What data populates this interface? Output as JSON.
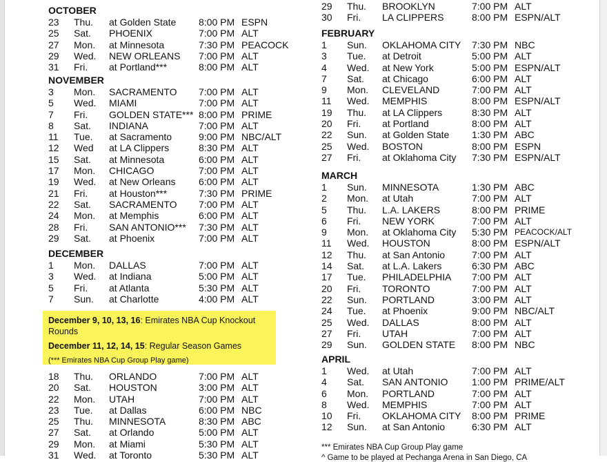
{
  "left_sections": [
    {
      "month": "OCTOBER",
      "games": [
        [
          "23",
          "Thu.",
          "at Golden State",
          "8:00 PM",
          "ESPN"
        ],
        [
          "25",
          "Sat.",
          "PHOENIX",
          "7:00 PM",
          "ALT"
        ],
        [
          "27",
          "Mon.",
          "at Minnesota",
          "7:30 PM",
          "PEACOCK"
        ],
        [
          "29",
          "Wed.",
          "NEW ORLEANS",
          "7:00 PM",
          "ALT"
        ],
        [
          "31",
          "Fri.",
          "at Portland***",
          "8:00 PM",
          "ALT"
        ]
      ]
    },
    {
      "month": "NOVEMBER",
      "games": [
        [
          "3",
          "Mon.",
          "SACRAMENTO",
          "7:00 PM",
          "ALT"
        ],
        [
          "5",
          "Wed.",
          "MIAMI",
          "7:00 PM",
          "ALT"
        ],
        [
          "7",
          "Fri.",
          "GOLDEN STATE***",
          "8:00 PM",
          "PRIME"
        ],
        [
          "8",
          "Sat.",
          "INDIANA",
          "7:00 PM",
          "ALT"
        ],
        [
          "11",
          "Tue.",
          "at Sacramento",
          "9:00 PM",
          "NBC/ALT"
        ],
        [
          "12",
          "Wed",
          "at LA Clippers",
          "8:30 PM",
          "ALT"
        ],
        [
          "15",
          "Sat.",
          "at Minnesota",
          "6:00 PM",
          "ALT"
        ],
        [
          "17",
          "Mon.",
          "CHICAGO",
          "7:00 PM",
          "ALT"
        ],
        [
          "19",
          "Wed.",
          "at New Orleans",
          "6:00 PM",
          "ALT"
        ],
        [
          "21",
          "Fri.",
          "at Houston***",
          "7:30 PM",
          "PRIME"
        ],
        [
          "22",
          "Sat.",
          "SACRAMENTO",
          "7:00 PM",
          "ALT"
        ],
        [
          "24",
          "Mon.",
          "at Memphis",
          "6:00 PM",
          "ALT"
        ],
        [
          "28",
          "Fri.",
          "SAN ANTONIO***",
          "7:30 PM",
          "ALT"
        ],
        [
          "29",
          "Sat.",
          "at Phoenix",
          "7:00 PM",
          "ALT"
        ]
      ]
    },
    {
      "month": "DECEMBER",
      "games": [
        [
          "1",
          "Mon.",
          "DALLAS",
          "7:00 PM",
          "ALT"
        ],
        [
          "3",
          "Wed.",
          "at Indiana",
          "5:00 PM",
          "ALT"
        ],
        [
          "5",
          "Fri.",
          "at Atlanta",
          "5:30 PM",
          "ALT"
        ],
        [
          "7",
          "Sun.",
          "at Charlotte",
          "4:00 PM",
          "ALT"
        ]
      ]
    },
    {
      "month": "",
      "games": [
        [
          "18",
          "Thu.",
          "ORLANDO",
          "7:00 PM",
          "ALT"
        ],
        [
          "20",
          "Sat.",
          "HOUSTON",
          "3:00 PM",
          "ALT"
        ],
        [
          "22",
          "Mon.",
          "UTAH",
          "7:00 PM",
          "ALT"
        ],
        [
          "23",
          "Tue.",
          "at Dallas",
          "6:00 PM",
          "NBC"
        ],
        [
          "25",
          "Thu.",
          "MINNESOTA",
          "8:30 PM",
          "ABC"
        ],
        [
          "27",
          "Sat.",
          "at Orlando",
          "5:00 PM",
          "ALT"
        ],
        [
          "29",
          "Mon.",
          "at Miami",
          "5:30 PM",
          "ALT"
        ],
        [
          "31",
          "Wed.",
          "at Toronto",
          "5:30 PM",
          "ALT"
        ]
      ]
    }
  ],
  "right_sections": [
    {
      "month": "",
      "games": [
        [
          "29",
          "Thu.",
          "BROOKLYN",
          "7:00 PM",
          "ALT"
        ],
        [
          "30",
          "Fri.",
          "LA CLIPPERS",
          "8:00 PM",
          "ESPN/ALT"
        ]
      ]
    },
    {
      "month": "FEBRUARY",
      "games": [
        [
          "1",
          "Sun.",
          "OKLAHOMA CITY",
          "7:30 PM",
          "NBC"
        ],
        [
          "3",
          "Tue.",
          "at Detroit",
          "5:00 PM",
          "ALT"
        ],
        [
          "4",
          "Wed.",
          "at New York",
          "5:00 PM",
          "ESPN/ALT"
        ],
        [
          "7",
          "Sat.",
          "at Chicago",
          "6:00 PM",
          "ALT"
        ],
        [
          "9",
          "Mon.",
          "CLEVELAND",
          "7:00 PM",
          "ALT"
        ],
        [
          "11",
          "Wed.",
          "MEMPHIS",
          "8:00 PM",
          "ESPN/ALT"
        ],
        [
          "19",
          "Thu.",
          "at LA Clippers",
          "8:30 PM",
          "ALT"
        ],
        [
          "20",
          "Fri.",
          "at Portland",
          "8:00 PM",
          "ALT"
        ],
        [
          "22",
          "Sun.",
          "at Golden State",
          "1:30 PM",
          "ABC"
        ],
        [
          "25",
          "Wed.",
          "BOSTON",
          "8:00 PM",
          "ESPN"
        ],
        [
          "27",
          "Fri.",
          "at Oklahoma City",
          "7:30 PM",
          "ESPN/ALT"
        ]
      ]
    },
    {
      "month": "MARCH",
      "games": [
        [
          "1",
          "Sun.",
          "MINNESOTA",
          "1:30 PM",
          "ABC"
        ],
        [
          "2",
          "Mon.",
          "at Utah",
          "7:00 PM",
          "ALT"
        ],
        [
          "5",
          "Thu.",
          "L.A. LAKERS",
          "8:00 PM",
          "PRIME"
        ],
        [
          "6",
          "Fri.",
          "NEW YORK",
          "7:00 PM",
          "ALT"
        ],
        [
          "9",
          "Mon.",
          "at Oklahoma City",
          "5:30 PM",
          "PEACOCK/ALT"
        ],
        [
          "11",
          "Wed.",
          "HOUSTON",
          "8:00 PM",
          "ESPN/ALT"
        ],
        [
          "12",
          "Thu.",
          "at San Antonio",
          "7:00 PM",
          "ALT"
        ],
        [
          "14",
          "Sat.",
          "at L.A. Lakers",
          "6:30 PM",
          "ABC"
        ],
        [
          "17",
          "Tue.",
          "PHILADELPHIA",
          "7:00 PM",
          "ALT"
        ],
        [
          "20",
          "Fri.",
          "TORONTO",
          "7:00 PM",
          "ALT"
        ],
        [
          "22",
          "Sun.",
          "PORTLAND",
          "3:00 PM",
          "ALT"
        ],
        [
          "24",
          "Tue.",
          "at Phoenix",
          "9:00 PM",
          "NBC/ALT"
        ],
        [
          "25",
          "Wed.",
          "DALLAS",
          "8:00 PM",
          "ALT"
        ],
        [
          "27",
          "Fri.",
          "UTAH",
          "7:00 PM",
          "ALT"
        ],
        [
          "29",
          "Sun.",
          "GOLDEN STATE",
          "8:00 PM",
          "NBC"
        ]
      ]
    },
    {
      "month": "APRIL",
      "games": [
        [
          "1",
          "Wed.",
          "at Utah",
          "7:00 PM",
          "ALT"
        ],
        [
          "4",
          "Sat.",
          "SAN ANTONIO",
          "1:00 PM",
          "PRIME/ALT"
        ],
        [
          "6",
          "Mon.",
          "PORTLAND",
          "7:00 PM",
          "ALT"
        ],
        [
          "8",
          "Wed.",
          "MEMPHIS",
          "7:00 PM",
          "ALT"
        ],
        [
          "10",
          "Fri.",
          "OKLAHOMA CITY",
          "8:00 PM",
          "PRIME"
        ],
        [
          "12",
          "Sun.",
          "at San Antonio",
          "6:30 PM",
          "ALT"
        ]
      ]
    }
  ],
  "note": {
    "line1_bold": "December 9, 10, 13, 16",
    "line1_rest": ": Emirates NBA Cup Knockout Rounds",
    "line2_bold": "December 11, 12, 14, 15",
    "line2_rest": ": Regular Season Games",
    "line3": "(*** Emirates NBA Cup Group Play game)"
  },
  "footnotes": [
    "*** Emirates NBA Cup Group Play game",
    "^ Game to be played at Pechanga Arena in San Diego, CA"
  ],
  "colors": {
    "highlight": "#fbf35a"
  }
}
